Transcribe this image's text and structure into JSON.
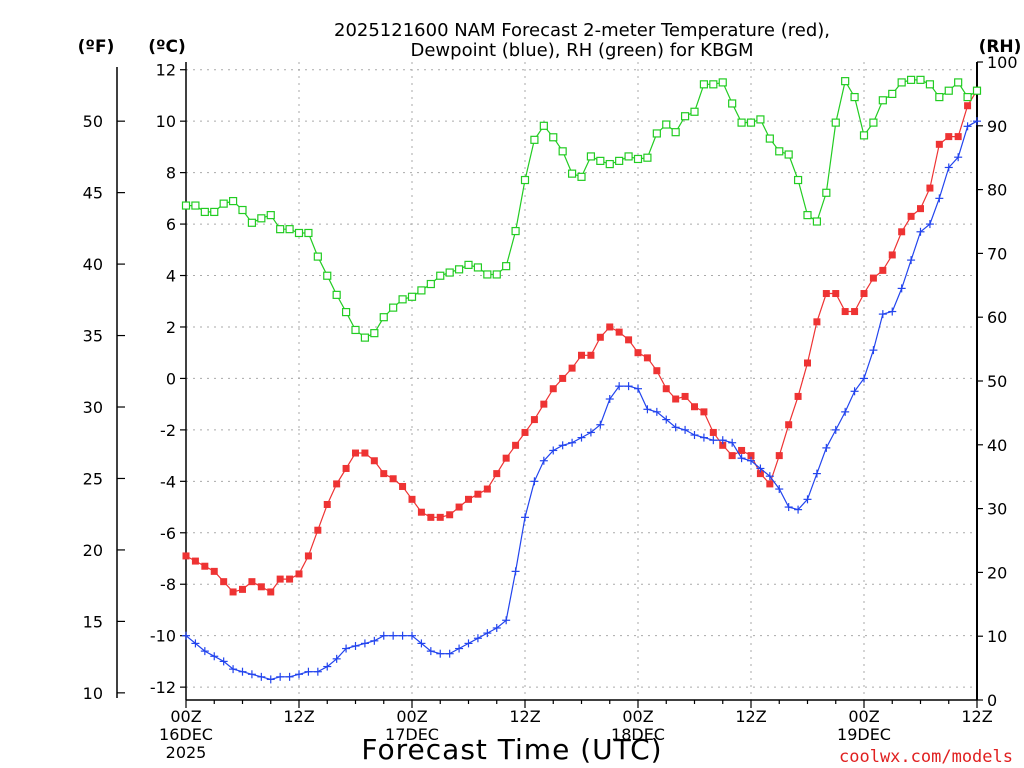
{
  "chart_data": {
    "type": "line",
    "title": [
      "2025121600 NAM Forecast 2-meter Temperature (red),",
      "Dewpoint (blue), RH (green) for KBGM"
    ],
    "xlabel": "Forecast Time (UTC)",
    "watermark": "coolwx.com/models",
    "axes": {
      "fahrenheit": {
        "label": "(ºF)",
        "ticks": [
          "10",
          "15",
          "20",
          "25",
          "30",
          "35",
          "40",
          "45",
          "50"
        ],
        "tick_values": [
          10,
          15,
          20,
          25,
          30,
          35,
          40,
          45,
          50
        ]
      },
      "celsius": {
        "label": "(ºC)",
        "range": [
          -12.5,
          12.3
        ],
        "ticks": [
          "-12",
          "-10",
          "-8",
          "-6",
          "-4",
          "-2",
          "0",
          "2",
          "4",
          "6",
          "8",
          "10",
          "12"
        ],
        "tick_values": [
          -12,
          -10,
          -8,
          -6,
          -4,
          -2,
          0,
          2,
          4,
          6,
          8,
          10,
          12
        ]
      },
      "rh": {
        "label": "(RH)",
        "range": [
          0,
          100
        ],
        "ticks": [
          "0",
          "10",
          "20",
          "30",
          "40",
          "50",
          "60",
          "70",
          "80",
          "90",
          "100"
        ],
        "tick_values": [
          0,
          10,
          20,
          30,
          40,
          50,
          60,
          70,
          80,
          90,
          100
        ]
      }
    },
    "x_range_hours": [
      0,
      84
    ],
    "x_ticks": [
      {
        "hour": 0,
        "lines": [
          "00Z",
          "16DEC",
          "2025"
        ]
      },
      {
        "hour": 12,
        "lines": [
          "12Z"
        ]
      },
      {
        "hour": 24,
        "lines": [
          "00Z",
          "17DEC"
        ]
      },
      {
        "hour": 36,
        "lines": [
          "12Z"
        ]
      },
      {
        "hour": 48,
        "lines": [
          "00Z",
          "18DEC"
        ]
      },
      {
        "hour": 60,
        "lines": [
          "12Z"
        ]
      },
      {
        "hour": 72,
        "lines": [
          "00Z",
          "19DEC"
        ]
      },
      {
        "hour": 84,
        "lines": [
          "12Z"
        ]
      }
    ],
    "hours": [
      0,
      1,
      2,
      3,
      4,
      5,
      6,
      7,
      8,
      9,
      10,
      11,
      12,
      13,
      14,
      15,
      16,
      17,
      18,
      19,
      20,
      21,
      22,
      23,
      24,
      25,
      26,
      27,
      28,
      29,
      30,
      31,
      32,
      33,
      34,
      35,
      36,
      37,
      38,
      39,
      40,
      41,
      42,
      43,
      44,
      45,
      46,
      47,
      48,
      49,
      50,
      51,
      52,
      53,
      54,
      55,
      56,
      57,
      58,
      59,
      60,
      61,
      62,
      63,
      64,
      65,
      66,
      67,
      68,
      69,
      70,
      71,
      72,
      73,
      74,
      75,
      76,
      77,
      78,
      79,
      80,
      81,
      82,
      83,
      84
    ],
    "series": [
      {
        "name": "Temperature",
        "unit": "C",
        "color": "#ee3333",
        "marker": "filled-square",
        "values": [
          -6.9,
          -7.1,
          -7.3,
          -7.5,
          -7.9,
          -8.3,
          -8.2,
          -7.9,
          -8.1,
          -8.3,
          -7.8,
          -7.8,
          -7.6,
          -6.9,
          -5.9,
          -4.9,
          -4.1,
          -3.5,
          -2.9,
          -2.9,
          -3.2,
          -3.7,
          -3.9,
          -4.2,
          -4.7,
          -5.2,
          -5.4,
          -5.4,
          -5.3,
          -5.0,
          -4.7,
          -4.5,
          -4.3,
          -3.7,
          -3.1,
          -2.6,
          -2.1,
          -1.6,
          -1.0,
          -0.4,
          0.0,
          0.4,
          0.9,
          0.9,
          1.6,
          2.0,
          1.8,
          1.5,
          1.0,
          0.8,
          0.3,
          -0.4,
          -0.8,
          -0.7,
          -1.1,
          -1.3,
          -2.1,
          -2.6,
          -3.0,
          -2.8,
          -3.0,
          -3.7,
          -4.1,
          -3.0,
          -1.8,
          -0.7,
          0.6,
          2.2,
          3.3,
          3.3,
          2.6,
          2.6,
          3.3,
          3.9,
          4.2,
          4.8,
          5.7,
          6.3,
          6.6,
          7.4,
          9.1,
          9.4,
          9.4,
          10.6,
          11.2
        ]
      },
      {
        "name": "Dewpoint",
        "unit": "C",
        "color": "#2244ee",
        "marker": "plus",
        "values": [
          -10.0,
          -10.3,
          -10.6,
          -10.8,
          -11.0,
          -11.3,
          -11.4,
          -11.5,
          -11.6,
          -11.7,
          -11.6,
          -11.6,
          -11.5,
          -11.4,
          -11.4,
          -11.2,
          -10.9,
          -10.5,
          -10.4,
          -10.3,
          -10.2,
          -10.0,
          -10.0,
          -10.0,
          -10.0,
          -10.3,
          -10.6,
          -10.7,
          -10.7,
          -10.5,
          -10.3,
          -10.1,
          -9.9,
          -9.7,
          -9.4,
          -7.5,
          -5.4,
          -4.0,
          -3.2,
          -2.8,
          -2.6,
          -2.5,
          -2.3,
          -2.1,
          -1.8,
          -0.8,
          -0.3,
          -0.3,
          -0.4,
          -1.2,
          -1.3,
          -1.6,
          -1.9,
          -2.0,
          -2.2,
          -2.3,
          -2.4,
          -2.4,
          -2.5,
          -3.1,
          -3.2,
          -3.5,
          -3.8,
          -4.3,
          -5.0,
          -5.1,
          -4.7,
          -3.7,
          -2.7,
          -2.0,
          -1.3,
          -0.5,
          0.0,
          1.1,
          2.5,
          2.6,
          3.5,
          4.6,
          5.7,
          6.0,
          7.0,
          8.2,
          8.6,
          9.8,
          10.0
        ]
      },
      {
        "name": "RH",
        "unit": "%",
        "color": "#22cc22",
        "marker": "open-square",
        "values": [
          77.5,
          77.5,
          76.5,
          76.5,
          77.8,
          78.2,
          76.8,
          74.8,
          75.5,
          76.0,
          73.8,
          73.8,
          73.2,
          73.2,
          69.5,
          66.5,
          63.5,
          60.8,
          58.0,
          56.8,
          57.5,
          60.0,
          61.5,
          62.8,
          63.2,
          64.2,
          65.2,
          66.5,
          67.0,
          67.5,
          68.2,
          67.8,
          66.7,
          66.7,
          68.0,
          73.5,
          81.5,
          87.8,
          90.0,
          88.2,
          86.0,
          82.5,
          82.0,
          85.2,
          84.5,
          84.0,
          84.5,
          85.2,
          84.8,
          85.0,
          88.8,
          90.2,
          89.0,
          91.5,
          92.2,
          96.5,
          96.5,
          96.8,
          93.5,
          90.5,
          90.5,
          91.0,
          88.0,
          86.0,
          85.5,
          81.5,
          76.0,
          75.0,
          79.5,
          90.5,
          97.0,
          94.5,
          88.5,
          90.5,
          94.0,
          95.0,
          96.8,
          97.2,
          97.2,
          96.5,
          94.5,
          95.5,
          96.8,
          94.5,
          95.5
        ]
      }
    ]
  }
}
